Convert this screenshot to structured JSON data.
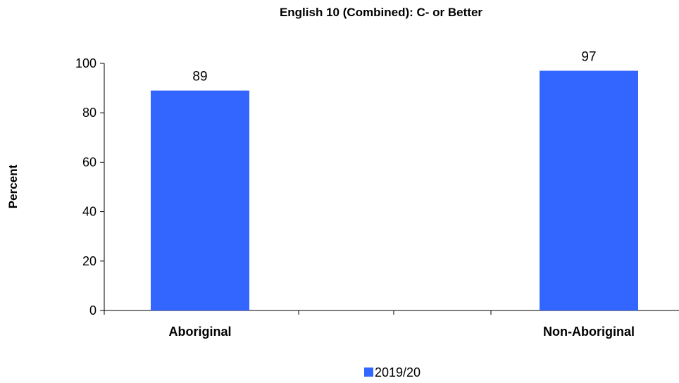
{
  "chart_data": {
    "type": "bar",
    "title": "English 10 (Combined): C- or Better",
    "xlabel": "",
    "ylabel": "Percent",
    "categories": [
      "Aboriginal",
      "Non-Aboriginal"
    ],
    "series": [
      {
        "name": "2019/20",
        "values": [
          89,
          97
        ],
        "color": "#3366ff"
      }
    ],
    "ylim": [
      0,
      100
    ],
    "yticks": [
      0,
      20,
      40,
      60,
      80,
      100
    ],
    "data_labels": true,
    "legend": "bottom-center",
    "grid": false
  }
}
